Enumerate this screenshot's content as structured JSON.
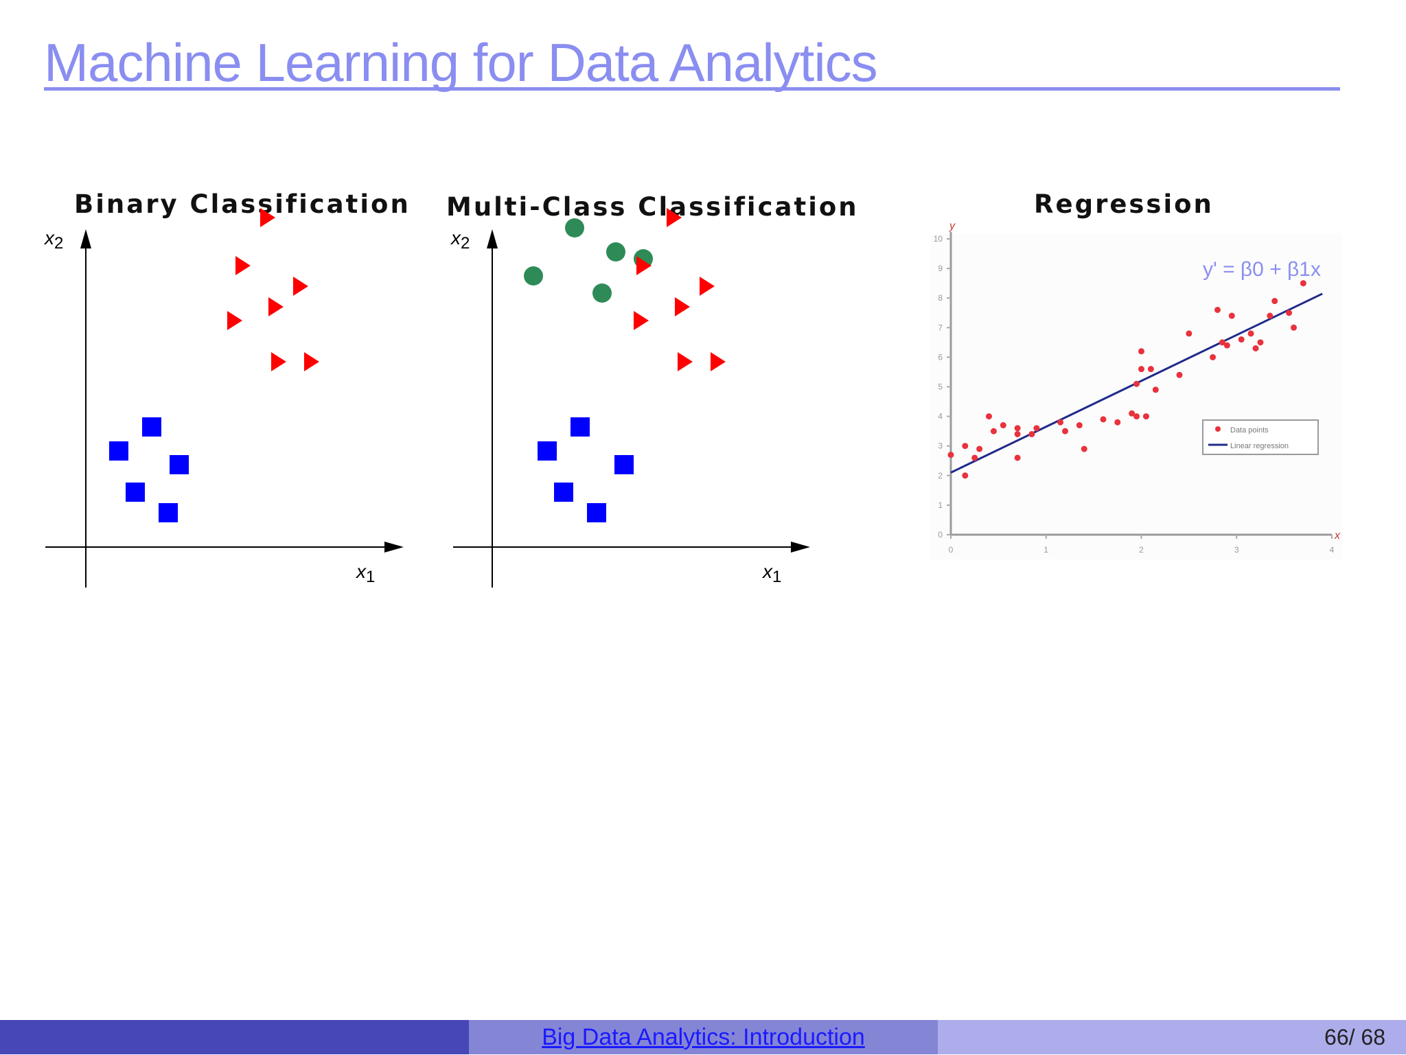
{
  "slide": {
    "title": "Machine Learning for Data Analytics",
    "panel_titles": {
      "binary": "Binary Classification",
      "multiclass": "Multi-Class Classification",
      "regression": "Regression"
    }
  },
  "footer": {
    "link_text": "Big Data Analytics: Introduction",
    "page_current": "66",
    "page_separator": "/",
    "page_total": "68"
  },
  "colors": {
    "title": "#8a8ef0",
    "class_square": "#0000ff",
    "class_triangle": "#ff0000",
    "class_circle": "#2e8b57",
    "regression_point": "#e8323c",
    "regression_line": "#1f2a8a"
  },
  "chart_data": [
    {
      "type": "scatter",
      "title": "Binary Classification",
      "xlabel": "x1",
      "ylabel": "x2",
      "axis_ticks": false,
      "series": [
        {
          "marker": "square",
          "color": "#0000ff",
          "points": [
            [
              1.2,
              2.8
            ],
            [
              2.4,
              3.5
            ],
            [
              1.8,
              1.6
            ],
            [
              3.4,
              2.4
            ],
            [
              3.0,
              1.0
            ]
          ]
        },
        {
          "marker": "triangle",
          "color": "#ff0000",
          "points": [
            [
              6.6,
              9.6
            ],
            [
              5.7,
              8.2
            ],
            [
              7.8,
              7.6
            ],
            [
              5.4,
              6.6
            ],
            [
              6.9,
              7.0
            ],
            [
              7.0,
              5.4
            ],
            [
              8.2,
              5.4
            ]
          ]
        }
      ]
    },
    {
      "type": "scatter",
      "title": "Multi-Class Classification",
      "xlabel": "x1",
      "ylabel": "x2",
      "axis_ticks": false,
      "series": [
        {
          "marker": "circle",
          "color": "#2e8b57",
          "points": [
            [
              3.0,
              9.3
            ],
            [
              4.5,
              8.6
            ],
            [
              5.5,
              8.4
            ],
            [
              1.5,
              7.9
            ],
            [
              4.0,
              7.4
            ]
          ]
        },
        {
          "marker": "square",
          "color": "#0000ff",
          "points": [
            [
              2.0,
              2.8
            ],
            [
              3.2,
              3.5
            ],
            [
              2.6,
              1.6
            ],
            [
              4.8,
              2.4
            ],
            [
              3.8,
              1.0
            ]
          ]
        },
        {
          "marker": "triangle",
          "color": "#ff0000",
          "points": [
            [
              6.6,
              9.6
            ],
            [
              5.5,
              8.2
            ],
            [
              7.8,
              7.6
            ],
            [
              5.4,
              6.6
            ],
            [
              6.9,
              7.0
            ],
            [
              7.0,
              5.4
            ],
            [
              8.2,
              5.4
            ]
          ]
        }
      ]
    },
    {
      "type": "scatter",
      "title": "Regression",
      "xlabel": "x",
      "ylabel": "y",
      "xlim": [
        0,
        4
      ],
      "ylim": [
        0,
        10
      ],
      "x_ticks": [
        0,
        1,
        2,
        3,
        4
      ],
      "y_ticks": [
        0,
        1,
        2,
        3,
        4,
        5,
        6,
        7,
        8,
        9,
        10
      ],
      "equation": "y' = β0 + β1x",
      "legend": [
        "Data points",
        "Linear regression"
      ],
      "legend_position": "right",
      "series": [
        {
          "name": "Data points",
          "points": [
            [
              0.0,
              2.7
            ],
            [
              0.15,
              3.0
            ],
            [
              0.15,
              2.0
            ],
            [
              0.25,
              2.6
            ],
            [
              0.3,
              2.9
            ],
            [
              0.4,
              4.0
            ],
            [
              0.45,
              3.5
            ],
            [
              0.55,
              3.7
            ],
            [
              0.7,
              2.6
            ],
            [
              0.7,
              3.6
            ],
            [
              0.7,
              3.4
            ],
            [
              0.85,
              3.4
            ],
            [
              0.9,
              3.6
            ],
            [
              1.15,
              3.8
            ],
            [
              1.2,
              3.5
            ],
            [
              1.35,
              3.7
            ],
            [
              1.4,
              2.9
            ],
            [
              1.6,
              3.9
            ],
            [
              1.75,
              3.8
            ],
            [
              1.9,
              4.1
            ],
            [
              1.95,
              4.0
            ],
            [
              1.95,
              5.1
            ],
            [
              2.0,
              5.6
            ],
            [
              2.0,
              6.2
            ],
            [
              2.05,
              4.0
            ],
            [
              2.1,
              5.6
            ],
            [
              2.15,
              4.9
            ],
            [
              2.4,
              5.4
            ],
            [
              2.5,
              6.8
            ],
            [
              2.75,
              6.0
            ],
            [
              2.8,
              7.6
            ],
            [
              2.85,
              6.5
            ],
            [
              2.9,
              6.4
            ],
            [
              2.95,
              7.4
            ],
            [
              3.05,
              6.6
            ],
            [
              3.15,
              6.8
            ],
            [
              3.2,
              6.3
            ],
            [
              3.25,
              6.5
            ],
            [
              3.35,
              7.4
            ],
            [
              3.4,
              7.9
            ],
            [
              3.55,
              7.5
            ],
            [
              3.6,
              7.0
            ],
            [
              3.7,
              8.5
            ]
          ]
        },
        {
          "name": "Linear regression",
          "line": {
            "intercept": 2.1,
            "slope": 1.55,
            "x_range": [
              0,
              3.9
            ]
          }
        }
      ]
    }
  ]
}
